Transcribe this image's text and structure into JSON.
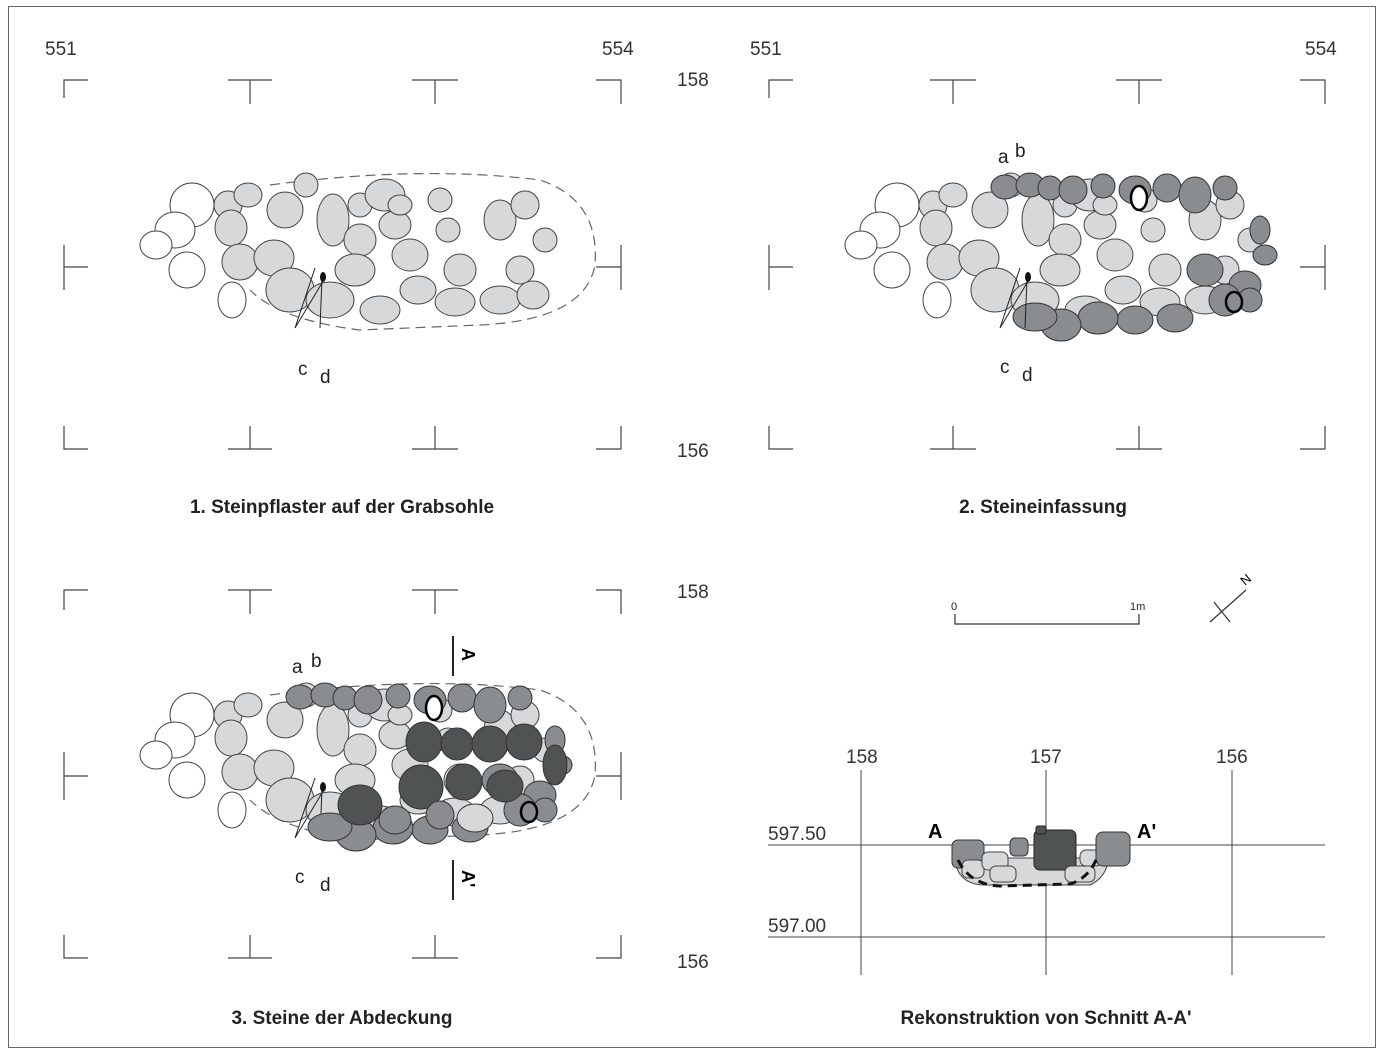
{
  "panel1": {
    "caption": "1. Steinpflaster auf der Grabsohle",
    "x_left": "551",
    "x_right": "554",
    "labels": {
      "c": "c",
      "d": "d"
    }
  },
  "panel2": {
    "caption": "2. Steineinfassung",
    "x_left": "551",
    "x_right": "554",
    "labels": {
      "a": "a",
      "b": "b",
      "c": "c",
      "d": "d"
    }
  },
  "panel3": {
    "caption": "3. Steine der Abdeckung",
    "labels": {
      "a": "a",
      "b": "b",
      "c": "c",
      "d": "d"
    },
    "section_top": "A",
    "section_bottom": "A'"
  },
  "y_labels": {
    "top_158": "158",
    "top_156": "156",
    "bottom_158": "158",
    "bottom_156": "156"
  },
  "scale": {
    "start": "0",
    "end": "1m"
  },
  "north": {
    "label": "N"
  },
  "section": {
    "caption": "Rekonstruktion von Schnitt A-A'",
    "x_labels": [
      "158",
      "157",
      "156"
    ],
    "elevations": [
      "597.50",
      "597.00"
    ],
    "point_left": "A",
    "point_right": "A'"
  },
  "colors": {
    "light": "#d6d8da",
    "medium": "#8a8d8f",
    "dark": "#505354"
  }
}
